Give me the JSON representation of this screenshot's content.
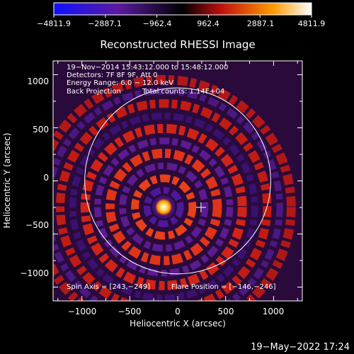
{
  "chart_data": {
    "type": "heatmap",
    "title": "Reconstructed RHESSI Image",
    "xlabel": "Heliocentric X (arcsec)",
    "ylabel": "Heliocentric Y (arcsec)",
    "xlim": [
      -1300,
      1300
    ],
    "ylim": [
      -1130,
      1130
    ],
    "xticks": [
      -1000,
      -500,
      0,
      500,
      1000
    ],
    "yticks": [
      -1000,
      -500,
      0,
      500,
      1000
    ],
    "xtick_labels": [
      "−1000",
      "−500",
      "0",
      "500",
      "1000"
    ],
    "ytick_labels": [
      "−1000",
      "−500",
      "0",
      "500",
      "1000"
    ],
    "colorbar": {
      "min": -4811.9,
      "max": 4811.9,
      "tick_values": [
        -4811.9,
        -2887.1,
        -962.4,
        962.4,
        2887.1,
        4811.9
      ],
      "tick_labels": [
        "−4811.9",
        "−2887.1",
        "−962.4",
        "962.4",
        "2887.1",
        "4811.9"
      ]
    },
    "annotations": {
      "line1": "19−Nov−2014 15:43:12.000 to 15:48:12.000",
      "line2": "Detectors: 7F 8F 9F, Att 0",
      "line3": "Energy Range: 6.0 − 12.0 keV",
      "line4a": "Back Projection",
      "line4b": "Total counts: 1.14E+04",
      "spin_axis": "Spin Axis = [243,−249]",
      "flare_position": "Flare Position = [−146,−246]"
    },
    "solar_limb_radius": 970,
    "source": {
      "x": -146,
      "y": -246,
      "peak": 4811.9
    },
    "spin_axis_marker": {
      "x": 243,
      "y": -249
    }
  },
  "footer_timestamp": "19−May−2022 17:24"
}
